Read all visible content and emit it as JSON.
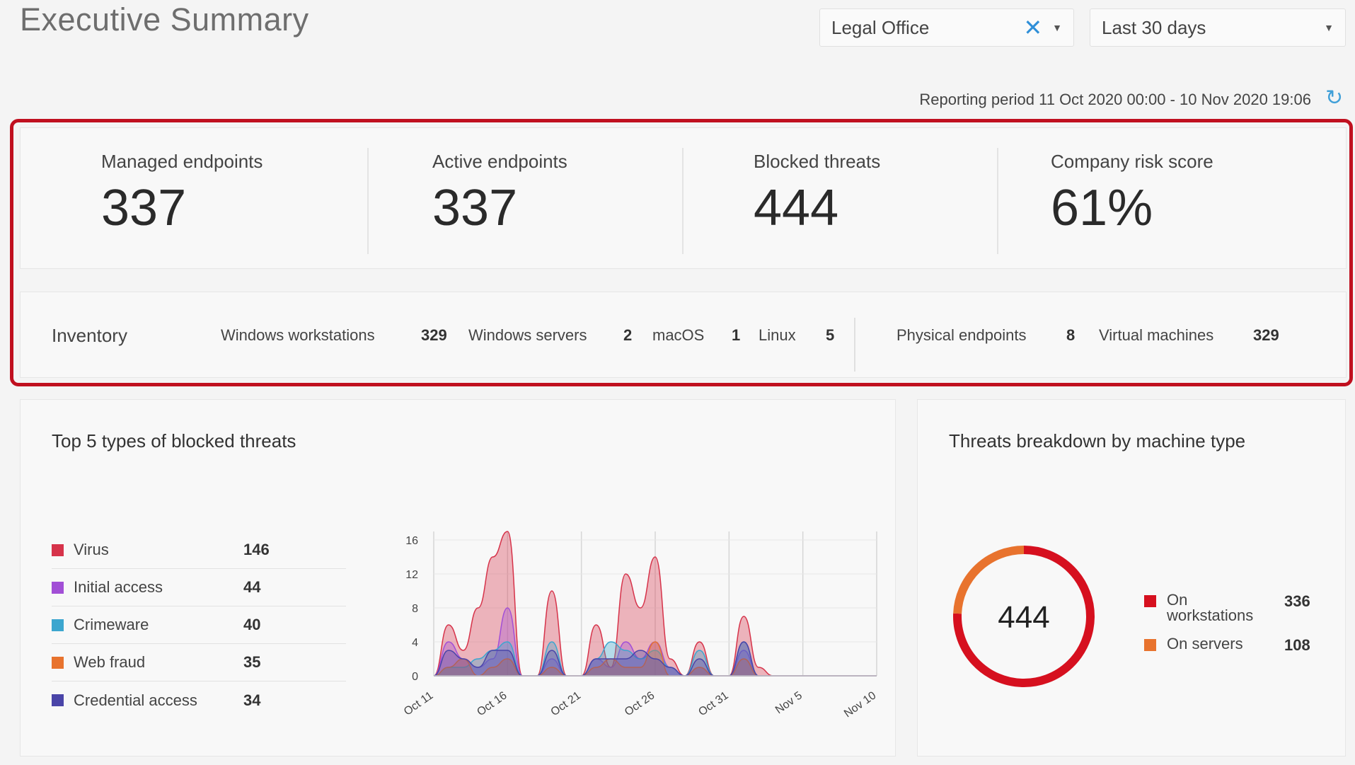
{
  "header": {
    "title": "Executive Summary",
    "site_filter": "Legal Office",
    "period_filter": "Last 30 days",
    "reporting_period": "Reporting period 11 Oct 2020 00:00 - 10 Nov 2020 19:06"
  },
  "kpis": [
    {
      "label": "Managed endpoints",
      "value": "337"
    },
    {
      "label": "Active endpoints",
      "value": "337"
    },
    {
      "label": "Blocked threats",
      "value": "444"
    },
    {
      "label": "Company risk score",
      "value": "61%"
    }
  ],
  "inventory": {
    "title": "Inventory",
    "items": [
      {
        "label": "Windows workstations",
        "value": "329"
      },
      {
        "label": "Windows servers",
        "value": "2"
      },
      {
        "label": "macOS",
        "value": "1"
      },
      {
        "label": "Linux",
        "value": "5"
      },
      {
        "label": "Physical endpoints",
        "value": "8"
      },
      {
        "label": "Virtual machines",
        "value": "329"
      }
    ]
  },
  "threats_panel": {
    "title": "Top 5 types of blocked threats",
    "legend": [
      {
        "label": "Virus",
        "value": "146",
        "color": "#d6334a"
      },
      {
        "label": "Initial access",
        "value": "44",
        "color": "#a24fd6"
      },
      {
        "label": "Crimeware",
        "value": "40",
        "color": "#3ca6cf"
      },
      {
        "label": "Web fraud",
        "value": "35",
        "color": "#e8732e"
      },
      {
        "label": "Credential access",
        "value": "34",
        "color": "#4a45a8"
      }
    ]
  },
  "breakdown_panel": {
    "title": "Threats breakdown by machine type",
    "total": "444",
    "items": [
      {
        "label": "On workstations",
        "value": "336",
        "color": "#d6101f"
      },
      {
        "label": "On servers",
        "value": "108",
        "color": "#e8732e"
      }
    ]
  },
  "chart_data": [
    {
      "type": "area",
      "x": [
        "Oct 11",
        "Oct 12",
        "Oct 13",
        "Oct 14",
        "Oct 15",
        "Oct 16",
        "Oct 17",
        "Oct 18",
        "Oct 19",
        "Oct 20",
        "Oct 21",
        "Oct 22",
        "Oct 23",
        "Oct 24",
        "Oct 25",
        "Oct 26",
        "Oct 27",
        "Oct 28",
        "Oct 29",
        "Oct 30",
        "Oct 31",
        "Nov 1",
        "Nov 2",
        "Nov 3",
        "Nov 4",
        "Nov 5",
        "Nov 6",
        "Nov 7",
        "Nov 8",
        "Nov 9",
        "Nov 10"
      ],
      "xticks": [
        "Oct 11",
        "Oct 16",
        "Oct 21",
        "Oct 26",
        "Oct 31",
        "Nov 5",
        "Nov 10"
      ],
      "yticks": [
        0,
        4,
        8,
        12,
        16
      ],
      "ylim": [
        0,
        17
      ],
      "series": [
        {
          "name": "Virus",
          "color": "#d6334a",
          "values": [
            0,
            6,
            3,
            8,
            14,
            17,
            0,
            0,
            10,
            0,
            0,
            6,
            1,
            12,
            8,
            14,
            2,
            0,
            4,
            0,
            0,
            7,
            1,
            0,
            0,
            0,
            0,
            0,
            0,
            0,
            0
          ]
        },
        {
          "name": "Initial access",
          "color": "#a24fd6",
          "values": [
            0,
            4,
            2,
            1,
            2,
            8,
            0,
            0,
            2,
            0,
            0,
            2,
            1,
            4,
            2,
            4,
            1,
            0,
            1,
            0,
            0,
            3,
            0,
            0,
            0,
            0,
            0,
            0,
            0,
            0,
            0
          ]
        },
        {
          "name": "Crimeware",
          "color": "#3ca6cf",
          "values": [
            0,
            1,
            1,
            2,
            3,
            4,
            0,
            0,
            4,
            0,
            0,
            2,
            4,
            3,
            2,
            3,
            1,
            0,
            3,
            0,
            0,
            4,
            0,
            0,
            0,
            0,
            0,
            0,
            0,
            0,
            0
          ]
        },
        {
          "name": "Web fraud",
          "color": "#e8732e",
          "values": [
            0,
            1,
            2,
            0,
            1,
            2,
            0,
            0,
            1,
            0,
            0,
            1,
            2,
            1,
            1,
            4,
            0,
            0,
            1,
            0,
            0,
            2,
            0,
            0,
            0,
            0,
            0,
            0,
            0,
            0,
            0
          ]
        },
        {
          "name": "Credential access",
          "color": "#4a45a8",
          "values": [
            0,
            3,
            2,
            1,
            3,
            3,
            0,
            0,
            3,
            0,
            0,
            2,
            2,
            2,
            3,
            2,
            1,
            0,
            2,
            0,
            0,
            4,
            0,
            0,
            0,
            0,
            0,
            0,
            0,
            0,
            0
          ]
        }
      ]
    },
    {
      "type": "pie",
      "categories": [
        "On workstations",
        "On servers"
      ],
      "values": [
        336,
        108
      ],
      "colors": [
        "#d6101f",
        "#e8732e"
      ]
    }
  ]
}
